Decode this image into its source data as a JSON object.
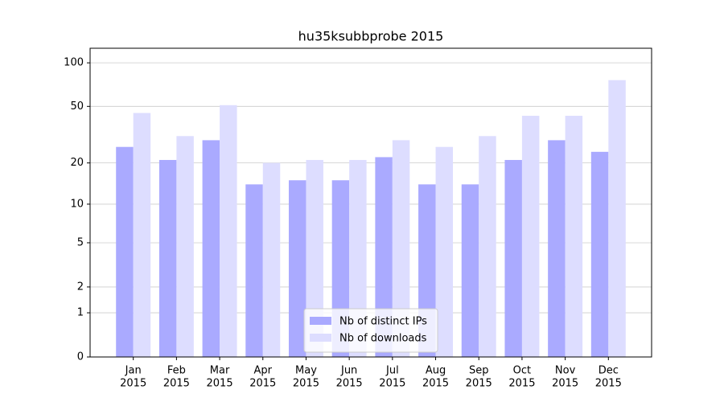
{
  "chart_data": {
    "type": "bar",
    "title": "hu35ksubbprobe 2015",
    "categories": [
      [
        "Jan",
        "2015"
      ],
      [
        "Feb",
        "2015"
      ],
      [
        "Mar",
        "2015"
      ],
      [
        "Apr",
        "2015"
      ],
      [
        "May",
        "2015"
      ],
      [
        "Jun",
        "2015"
      ],
      [
        "Jul",
        "2015"
      ],
      [
        "Aug",
        "2015"
      ],
      [
        "Sep",
        "2015"
      ],
      [
        "Oct",
        "2015"
      ],
      [
        "Nov",
        "2015"
      ],
      [
        "Dec",
        "2015"
      ]
    ],
    "series": [
      {
        "name": "Nb of distinct IPs",
        "color": "#aaaaff",
        "values": [
          26,
          21,
          29,
          14,
          15,
          15,
          22,
          14,
          14,
          21,
          29,
          24
        ]
      },
      {
        "name": "Nb of downloads",
        "color": "#ddddff",
        "values": [
          45,
          31,
          51,
          20,
          21,
          21,
          29,
          26,
          31,
          43,
          43,
          76
        ]
      }
    ],
    "yscale": "log1p",
    "ylim": [
      0,
      126
    ],
    "yticks": [
      0,
      1,
      2,
      5,
      10,
      20,
      50,
      100
    ],
    "grid": true,
    "legend": "lower center"
  }
}
